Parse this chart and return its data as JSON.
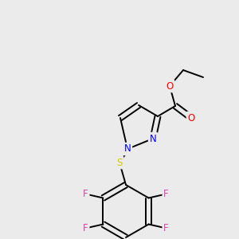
{
  "bg_color": "#ebebeb",
  "bond_color": "#000000",
  "bond_width": 1.4,
  "figsize": [
    3.0,
    3.0
  ],
  "dpi": 100,
  "colors": {
    "N": "#0000ff",
    "O": "#ff0000",
    "S": "#cccc00",
    "F": "#dd44aa",
    "C": "#000000"
  }
}
